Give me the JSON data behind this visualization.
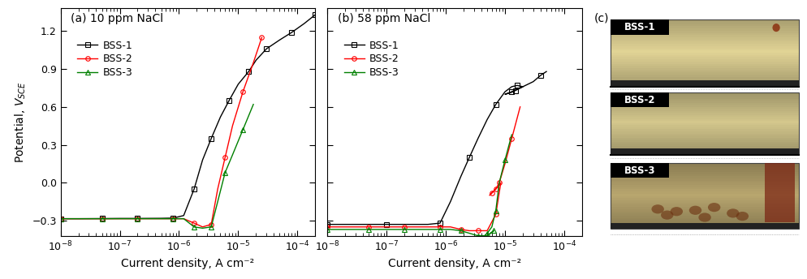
{
  "panel_a_title": "(a) 10 ppm NaCl",
  "panel_b_title": "(b) 58 ppm NaCl",
  "panel_c_title": "(c)",
  "xlabel": "Current density, A cm⁻²",
  "ylabel": "Potential, V",
  "ylabel_sub": "SCE",
  "ylim": [
    -0.42,
    1.38
  ],
  "yticks": [
    -0.3,
    0.0,
    0.3,
    0.6,
    0.9,
    1.2
  ],
  "xlim_log_min": -8,
  "xlim_log_max": -3.699,
  "legend_labels": [
    "BSS-1",
    "BSS-2",
    "BSS-3"
  ],
  "colors": [
    "black",
    "red",
    "green"
  ],
  "markers": [
    "s",
    "o",
    "^"
  ],
  "panel_a": {
    "BSS1_x": [
      1e-08,
      2e-08,
      5e-08,
      1e-07,
      2e-07,
      5e-07,
      8e-07,
      1.2e-06,
      1.8e-06,
      2.5e-06,
      3.5e-06,
      5e-06,
      7e-06,
      1e-05,
      1.5e-05,
      2e-05,
      3e-05,
      5e-05,
      8e-05,
      0.00013,
      0.0002
    ],
    "BSS1_y": [
      -0.285,
      -0.285,
      -0.284,
      -0.283,
      -0.283,
      -0.282,
      -0.28,
      -0.26,
      -0.05,
      0.18,
      0.35,
      0.52,
      0.65,
      0.78,
      0.88,
      0.97,
      1.06,
      1.13,
      1.19,
      1.26,
      1.33
    ],
    "BSS2_x": [
      1e-08,
      2e-08,
      5e-08,
      1e-07,
      2e-07,
      5e-07,
      8e-07,
      1.2e-06,
      1.8e-06,
      2.5e-06,
      3.5e-06,
      4.5e-06,
      6e-06,
      8e-06,
      1.2e-05,
      1.8e-05,
      2.5e-05
    ],
    "BSS2_y": [
      -0.285,
      -0.285,
      -0.285,
      -0.285,
      -0.285,
      -0.285,
      -0.285,
      -0.285,
      -0.32,
      -0.35,
      -0.33,
      -0.05,
      0.2,
      0.45,
      0.72,
      0.95,
      1.15
    ],
    "BSS3_x": [
      1e-08,
      2e-08,
      5e-08,
      1e-07,
      2e-07,
      5e-07,
      8e-07,
      1.2e-06,
      1.8e-06,
      2.5e-06,
      3.5e-06,
      4.5e-06,
      6e-06,
      8e-06,
      1.2e-05,
      1.8e-05
    ],
    "BSS3_y": [
      -0.285,
      -0.285,
      -0.285,
      -0.285,
      -0.285,
      -0.285,
      -0.285,
      -0.285,
      -0.35,
      -0.36,
      -0.35,
      -0.15,
      0.08,
      0.22,
      0.42,
      0.62
    ]
  },
  "panel_b": {
    "BSS1_x": [
      1e-08,
      2e-08,
      5e-08,
      1e-07,
      2e-07,
      5e-07,
      8e-07,
      1.2e-06,
      1.8e-06,
      2.5e-06,
      3.5e-06,
      5e-06,
      7e-06,
      1e-05,
      1.3e-05,
      1.6e-05,
      2e-05,
      1.6e-05,
      1.3e-05,
      1e-05,
      1.2e-05,
      1.5e-05,
      2e-05,
      3e-05,
      4e-05,
      5e-05
    ],
    "BSS1_y": [
      -0.33,
      -0.33,
      -0.33,
      -0.33,
      -0.33,
      -0.33,
      -0.32,
      -0.15,
      0.05,
      0.2,
      0.35,
      0.5,
      0.62,
      0.72,
      0.76,
      0.77,
      0.76,
      0.74,
      0.72,
      0.7,
      0.71,
      0.73,
      0.76,
      0.8,
      0.85,
      0.88
    ],
    "BSS2_x": [
      1e-08,
      2e-08,
      5e-08,
      1e-07,
      2e-07,
      5e-07,
      8e-07,
      1.2e-06,
      1.8e-06,
      2.5e-06,
      3.5e-06,
      5e-06,
      7e-06,
      8.5e-06,
      7e-06,
      5.5e-06,
      6e-06,
      7e-06,
      8e-06,
      1e-05,
      1.3e-05,
      1.8e-05
    ],
    "BSS2_y": [
      -0.35,
      -0.35,
      -0.35,
      -0.35,
      -0.35,
      -0.35,
      -0.35,
      -0.35,
      -0.37,
      -0.38,
      -0.38,
      -0.38,
      -0.25,
      0.0,
      -0.05,
      -0.1,
      -0.08,
      -0.05,
      0.0,
      0.15,
      0.35,
      0.6
    ],
    "BSS3_x": [
      1e-08,
      2e-08,
      5e-08,
      1e-07,
      2e-07,
      5e-07,
      8e-07,
      1.2e-06,
      1.8e-06,
      2.5e-06,
      3.5e-06,
      5e-06,
      6.5e-06,
      5e-06,
      4e-06,
      4.5e-06,
      5e-06,
      6e-06,
      7e-06,
      8e-06,
      1e-05,
      1.3e-05
    ],
    "BSS3_y": [
      -0.37,
      -0.37,
      -0.37,
      -0.37,
      -0.37,
      -0.37,
      -0.37,
      -0.37,
      -0.38,
      -0.4,
      -0.42,
      -0.42,
      -0.38,
      -0.42,
      -0.44,
      -0.42,
      -0.4,
      -0.35,
      -0.22,
      0.0,
      0.18,
      0.38
    ]
  },
  "bg_color": "white",
  "line_width": 1.0,
  "marker_size": 4,
  "tick_fontsize": 9,
  "label_fontsize": 10,
  "legend_fontsize": 9,
  "title_fontsize": 10,
  "marker_interval_a_bss1": 2,
  "marker_interval_a_bss2": 2,
  "marker_interval_a_bss3": 2,
  "marker_interval_b_bss1": 3,
  "marker_interval_b_bss2": 2,
  "marker_interval_b_bss3": 2
}
